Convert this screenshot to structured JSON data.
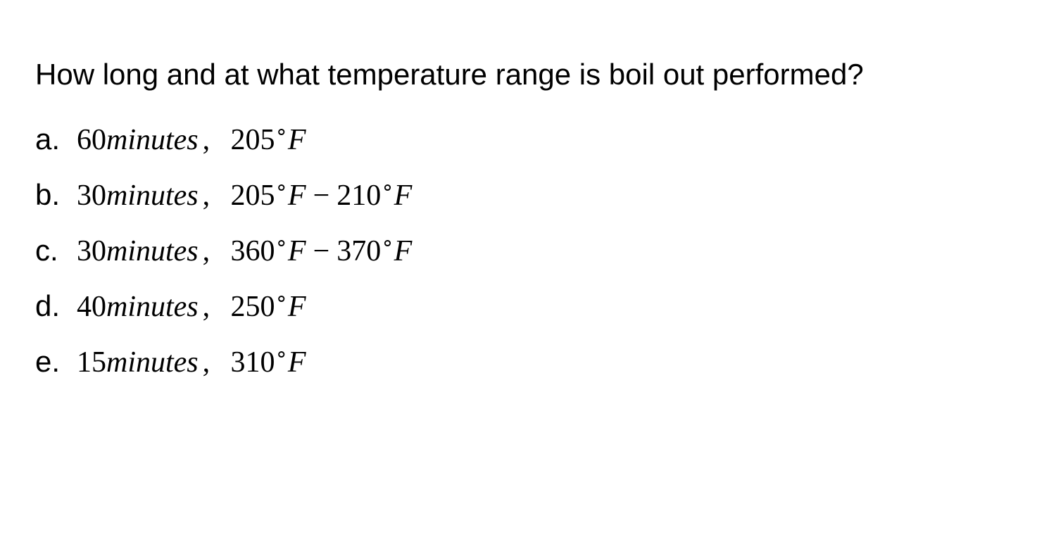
{
  "question": "How long and at what temperature range is boil out performed?",
  "options": [
    {
      "label": "a.",
      "duration_value": "60",
      "duration_unit": "minutes",
      "temp1": "205",
      "temp2": null
    },
    {
      "label": "b.",
      "duration_value": "30",
      "duration_unit": "minutes",
      "temp1": "205",
      "temp2": "210"
    },
    {
      "label": "c.",
      "duration_value": "30",
      "duration_unit": "minutes",
      "temp1": "360",
      "temp2": "370"
    },
    {
      "label": "d.",
      "duration_value": "40",
      "duration_unit": "minutes",
      "temp1": "250",
      "temp2": null
    },
    {
      "label": "e.",
      "duration_value": "15",
      "duration_unit": "minutes",
      "temp1": "310",
      "temp2": null
    }
  ],
  "styling": {
    "background_color": "#ffffff",
    "text_color": "#000000",
    "question_fontsize": 42,
    "option_fontsize": 42,
    "question_font": "Arial",
    "math_font": "Times New Roman",
    "line_height": 1.7,
    "option_gap": 14
  }
}
